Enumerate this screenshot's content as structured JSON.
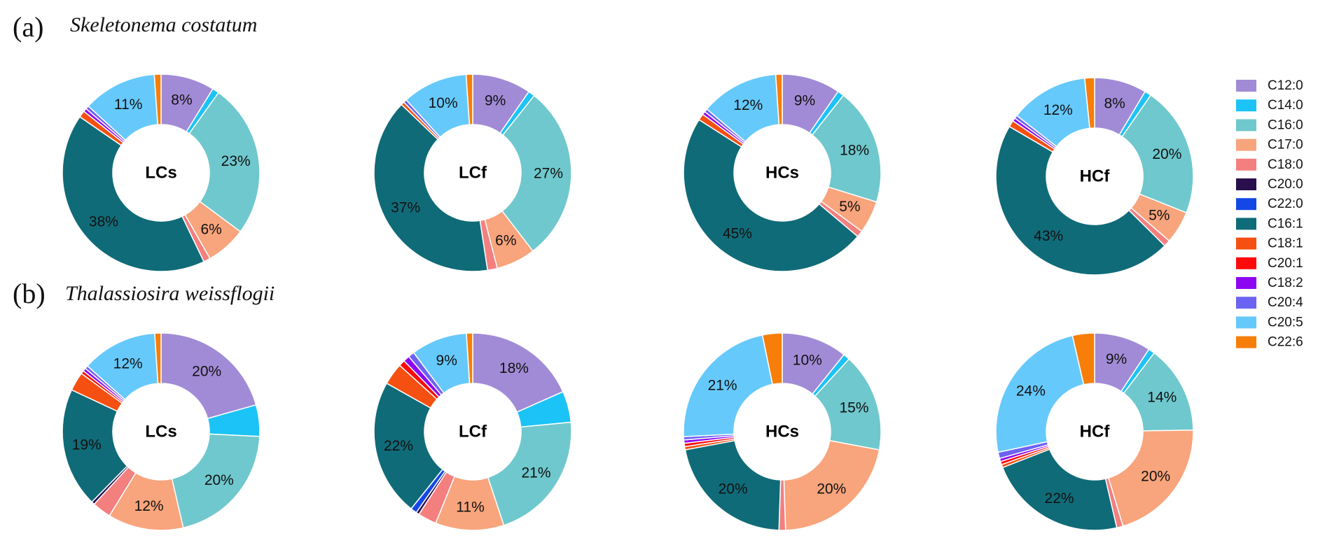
{
  "colors": {
    "C12:0": "#a18bd6",
    "C14:0": "#1cc3f7",
    "C16:0": "#6fc8cd",
    "C17:0": "#f8a47c",
    "C18:0": "#f47f7f",
    "C20:0": "#2a0f4f",
    "C22:0": "#1348e6",
    "C16:1": "#106b78",
    "C18:1": "#f54f11",
    "C20:1": "#ff0a0a",
    "C18:2": "#8d06f2",
    "C20:4": "#6b63f2",
    "C20:5": "#66c9fb",
    "C22:6": "#f77e08"
  },
  "legend": [
    "C12:0",
    "C14:0",
    "C16:0",
    "C17:0",
    "C18:0",
    "C20:0",
    "C22:0",
    "C16:1",
    "C18:1",
    "C20:1",
    "C18:2",
    "C20:4",
    "C20:5",
    "C22:6"
  ],
  "panels": [
    {
      "label": "(a)",
      "species": "Skeletonema costatum"
    },
    {
      "label": "(b)",
      "species": "Thalassiosira weissflogii"
    }
  ],
  "chart_data": [
    {
      "type": "pie",
      "panel": "(a)",
      "center_label": "LCs",
      "categories": [
        "C12:0",
        "C14:0",
        "C16:0",
        "C17:0",
        "C18:0",
        "C20:0",
        "C22:0",
        "C16:1",
        "C18:1",
        "C20:1",
        "C18:2",
        "C20:4",
        "C20:5",
        "C22:6"
      ],
      "values": [
        8,
        1,
        23,
        6,
        1,
        0,
        0,
        38,
        1,
        0,
        0.5,
        0.5,
        11,
        1
      ],
      "labels": [
        "8%",
        "",
        "23%",
        "6%",
        "",
        "",
        "",
        "38%",
        "",
        "",
        "",
        "",
        "11%",
        ""
      ]
    },
    {
      "type": "pie",
      "panel": "(a)",
      "center_label": "LCf",
      "categories": [
        "C12:0",
        "C14:0",
        "C16:0",
        "C17:0",
        "C18:0",
        "C20:0",
        "C22:0",
        "C16:1",
        "C18:1",
        "C20:1",
        "C18:2",
        "C20:4",
        "C20:5",
        "C22:6"
      ],
      "values": [
        9,
        1,
        27,
        6,
        1.5,
        0,
        0,
        37,
        0.5,
        0,
        0,
        0.5,
        10,
        1
      ],
      "labels": [
        "9%",
        "",
        "27%",
        "6%",
        "",
        "",
        "",
        "37%",
        "",
        "",
        "",
        "",
        "10%",
        ""
      ]
    },
    {
      "type": "pie",
      "panel": "(a)",
      "center_label": "HCs",
      "categories": [
        "C12:0",
        "C14:0",
        "C16:0",
        "C17:0",
        "C18:0",
        "C20:0",
        "C22:0",
        "C16:1",
        "C18:1",
        "C20:1",
        "C18:2",
        "C20:4",
        "C20:5",
        "C22:6"
      ],
      "values": [
        9,
        1,
        18,
        5,
        1,
        0,
        0,
        45,
        1,
        0,
        0.5,
        0.5,
        12,
        1
      ],
      "labels": [
        "9%",
        "",
        "18%",
        "5%",
        "",
        "",
        "",
        "45%",
        "",
        "",
        "",
        "",
        "12%",
        ""
      ]
    },
    {
      "type": "pie",
      "panel": "(a)",
      "center_label": "HCf",
      "categories": [
        "C12:0",
        "C14:0",
        "C16:0",
        "C17:0",
        "C18:0",
        "C20:0",
        "C22:0",
        "C16:1",
        "C18:1",
        "C20:1",
        "C18:2",
        "C20:4",
        "C20:5",
        "C22:6"
      ],
      "values": [
        8,
        1,
        20,
        5,
        1,
        0,
        0,
        43,
        1,
        0,
        0.5,
        0.5,
        12,
        1.5
      ],
      "labels": [
        "8%",
        "",
        "20%",
        "5%",
        "",
        "",
        "",
        "43%",
        "",
        "",
        "",
        "",
        "12%",
        ""
      ]
    },
    {
      "type": "pie",
      "panel": "(b)",
      "center_label": "LCs",
      "categories": [
        "C12:0",
        "C14:0",
        "C16:0",
        "C17:0",
        "C18:0",
        "C20:0",
        "C22:0",
        "C16:1",
        "C18:1",
        "C20:1",
        "C18:2",
        "C20:4",
        "C20:5",
        "C22:6"
      ],
      "values": [
        20,
        5,
        20,
        12,
        3,
        0.5,
        0,
        19,
        3,
        0.5,
        0.5,
        0.5,
        12,
        1
      ],
      "labels": [
        "20%",
        "",
        "20%",
        "12%",
        "",
        "",
        "",
        "19%",
        "",
        "",
        "",
        "",
        "12%",
        ""
      ]
    },
    {
      "type": "pie",
      "panel": "(b)",
      "center_label": "LCf",
      "categories": [
        "C12:0",
        "C14:0",
        "C16:0",
        "C17:0",
        "C18:0",
        "C20:0",
        "C22:0",
        "C16:1",
        "C18:1",
        "C20:1",
        "C18:2",
        "C20:4",
        "C20:5",
        "C22:6"
      ],
      "values": [
        18,
        5,
        21,
        11,
        3,
        0.5,
        1,
        22,
        3.5,
        1,
        1,
        1,
        9,
        1
      ],
      "labels": [
        "18%",
        "",
        "21%",
        "11%",
        "",
        "",
        "",
        "22%",
        "",
        "",
        "",
        "",
        "9%",
        ""
      ]
    },
    {
      "type": "pie",
      "panel": "(b)",
      "center_label": "HCs",
      "categories": [
        "C12:0",
        "C14:0",
        "C16:0",
        "C17:0",
        "C18:0",
        "C20:0",
        "C22:0",
        "C16:1",
        "C18:1",
        "C20:1",
        "C18:2",
        "C20:4",
        "C20:5",
        "C22:6"
      ],
      "values": [
        10,
        1,
        15,
        20,
        1,
        0,
        0,
        20,
        0.5,
        0.5,
        0.5,
        0.5,
        21,
        3
      ],
      "labels": [
        "10%",
        "",
        "15%",
        "20%",
        "",
        "",
        "",
        "20%",
        "",
        "",
        "",
        "",
        "21%",
        ""
      ]
    },
    {
      "type": "pie",
      "panel": "(b)",
      "center_label": "HCf",
      "categories": [
        "C12:0",
        "C14:0",
        "C16:0",
        "C17:0",
        "C18:0",
        "C20:0",
        "C22:0",
        "C16:1",
        "C18:1",
        "C20:1",
        "C18:2",
        "C20:4",
        "C20:5",
        "C22:6"
      ],
      "values": [
        9,
        1,
        14,
        20,
        1,
        0,
        0,
        22,
        0.5,
        0.5,
        0.5,
        1,
        24,
        3.5
      ],
      "labels": [
        "9%",
        "",
        "14%",
        "20%",
        "",
        "",
        "",
        "22%",
        "",
        "",
        "",
        "",
        "24%",
        ""
      ]
    }
  ]
}
